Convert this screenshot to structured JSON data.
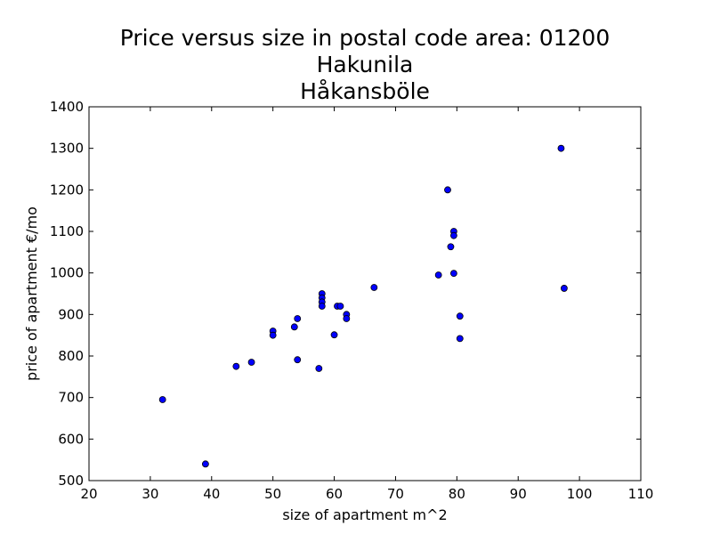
{
  "chart_data": {
    "type": "scatter",
    "title_lines": [
      "Price versus size in postal code area: 01200",
      "Hakunila",
      "Håkansböle"
    ],
    "xlabel": "size of apartment m^2",
    "ylabel": "price of apartment €/mo",
    "xlim": [
      20,
      110
    ],
    "ylim": [
      500,
      1400
    ],
    "xticks": [
      20,
      30,
      40,
      50,
      60,
      70,
      80,
      90,
      100,
      110
    ],
    "yticks": [
      500,
      600,
      700,
      800,
      900,
      1000,
      1100,
      1200,
      1300,
      1400
    ],
    "grid": false,
    "marker_color": "#0000ff",
    "points": [
      {
        "x": 32,
        "y": 695
      },
      {
        "x": 39,
        "y": 540
      },
      {
        "x": 44,
        "y": 775
      },
      {
        "x": 46.5,
        "y": 785
      },
      {
        "x": 50,
        "y": 860
      },
      {
        "x": 50,
        "y": 850
      },
      {
        "x": 53.5,
        "y": 870
      },
      {
        "x": 54,
        "y": 890
      },
      {
        "x": 54,
        "y": 791
      },
      {
        "x": 57.5,
        "y": 770
      },
      {
        "x": 58,
        "y": 950
      },
      {
        "x": 58,
        "y": 940
      },
      {
        "x": 58,
        "y": 930
      },
      {
        "x": 58,
        "y": 920
      },
      {
        "x": 60,
        "y": 851
      },
      {
        "x": 60.5,
        "y": 920
      },
      {
        "x": 61,
        "y": 920
      },
      {
        "x": 62,
        "y": 900
      },
      {
        "x": 62,
        "y": 890
      },
      {
        "x": 66.5,
        "y": 965
      },
      {
        "x": 77,
        "y": 995
      },
      {
        "x": 78.5,
        "y": 1200
      },
      {
        "x": 79,
        "y": 1063
      },
      {
        "x": 79.5,
        "y": 1100
      },
      {
        "x": 79.5,
        "y": 1090
      },
      {
        "x": 79.5,
        "y": 999
      },
      {
        "x": 80.5,
        "y": 896
      },
      {
        "x": 80.5,
        "y": 842
      },
      {
        "x": 97,
        "y": 1300
      },
      {
        "x": 97.5,
        "y": 963
      }
    ]
  }
}
